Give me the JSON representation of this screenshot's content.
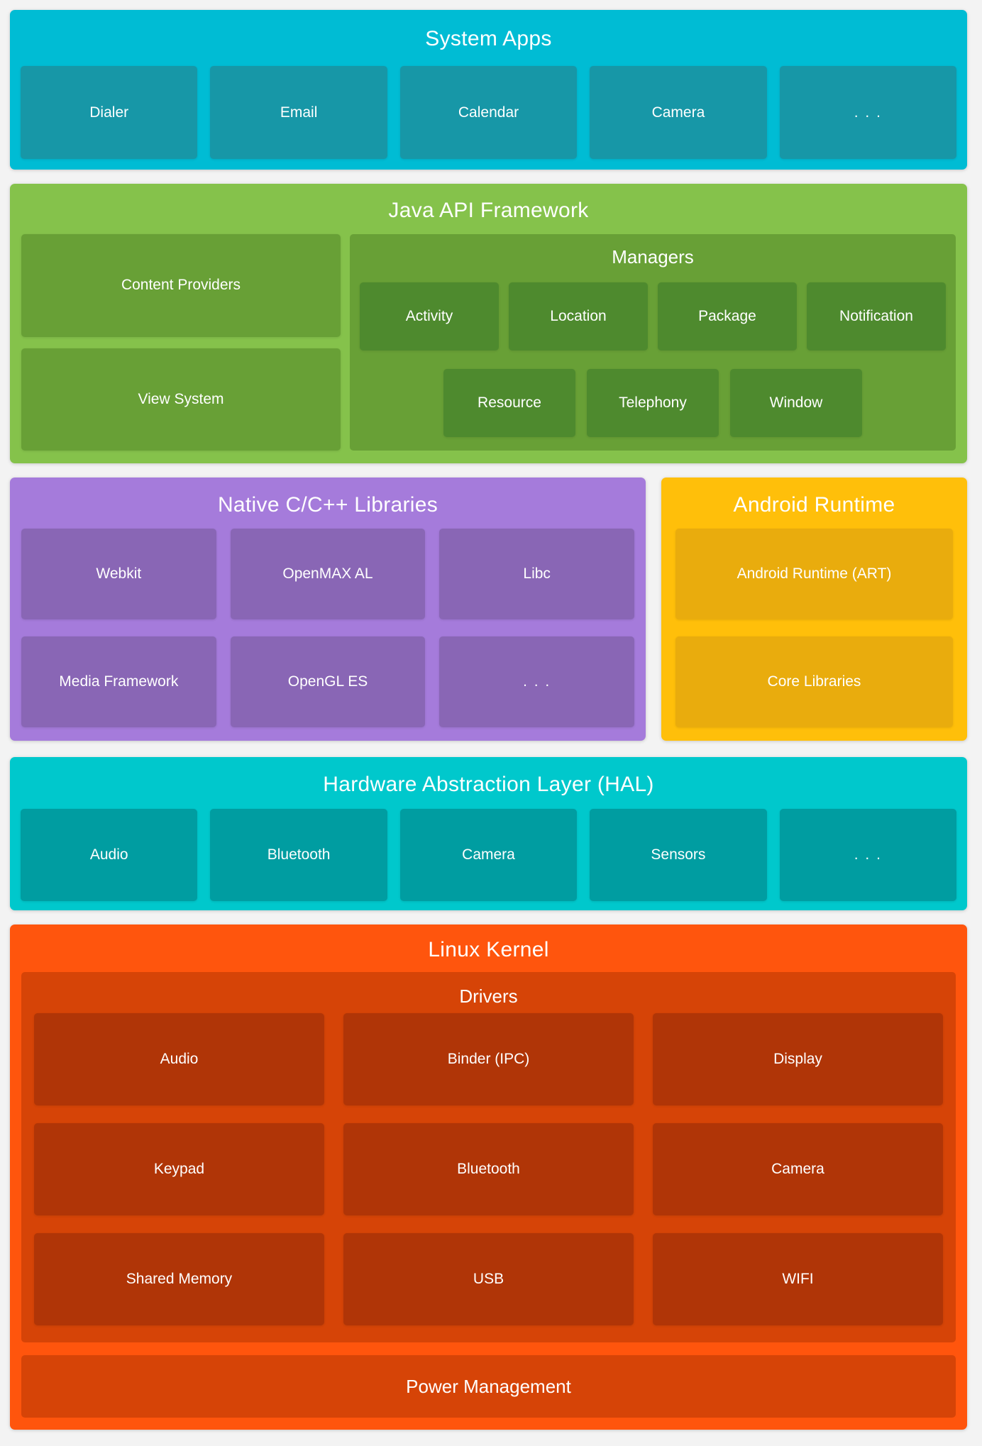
{
  "page": {
    "background": "#F3F3F3",
    "text_color": "#FFFFFF"
  },
  "sections": {
    "system_apps": {
      "title": "System Apps",
      "color": "#00BCD4",
      "box_color": "#1797A7",
      "apps": [
        "Dialer",
        "Email",
        "Calendar",
        "Camera",
        ". . ."
      ]
    },
    "java_api": {
      "title": "Java API Framework",
      "color": "#85C24B",
      "box_color": "#68A036",
      "inner_box_color": "#4E8A2E",
      "left_boxes": [
        "Content Providers",
        "View System"
      ],
      "managers": {
        "title": "Managers",
        "row1": [
          "Activity",
          "Location",
          "Package",
          "Notification"
        ],
        "row2": [
          "Resource",
          "Telephony",
          "Window"
        ]
      }
    },
    "native_libs": {
      "title": "Native C/C++ Libraries",
      "color": "#A57BDB",
      "box_color": "#8966B5",
      "libs": [
        "Webkit",
        "OpenMAX AL",
        "Libc",
        "Media Framework",
        "OpenGL ES",
        ". . ."
      ]
    },
    "android_runtime": {
      "title": "Android Runtime",
      "color": "#FFBF0A",
      "box_color": "#E9AC0D",
      "items": [
        "Android Runtime (ART)",
        "Core Libraries"
      ]
    },
    "hal": {
      "title": "Hardware Abstraction Layer (HAL)",
      "color": "#00C8CC",
      "box_color": "#009DA1",
      "items": [
        "Audio",
        "Bluetooth",
        "Camera",
        "Sensors",
        ". . ."
      ]
    },
    "linux_kernel": {
      "title": "Linux Kernel",
      "color": "#FF550D",
      "box_color": "#D64407",
      "inner_box_color": "#B03507",
      "drivers": {
        "title": "Drivers",
        "items": [
          "Audio",
          "Binder (IPC)",
          "Display",
          "Keypad",
          "Bluetooth",
          "Camera",
          "Shared Memory",
          "USB",
          "WIFI"
        ]
      },
      "power_label": "Power Management"
    }
  }
}
